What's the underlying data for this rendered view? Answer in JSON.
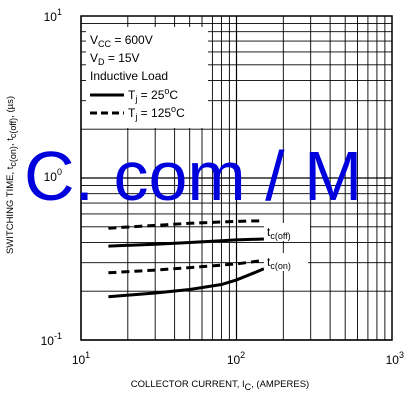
{
  "chart_data": {
    "type": "line",
    "x_scale": "log",
    "y_scale": "log",
    "xlim": [
      10,
      1000
    ],
    "ylim": [
      0.1,
      10
    ],
    "x_ticks": [
      {
        "value": 10,
        "base": "10",
        "exp": "1"
      },
      {
        "value": 100,
        "base": "10",
        "exp": "2"
      },
      {
        "value": 1000,
        "base": "10",
        "exp": "3"
      }
    ],
    "y_ticks": [
      {
        "value": 0.1,
        "base": "10",
        "exp": "-1"
      },
      {
        "value": 1,
        "base": "10",
        "exp": "0"
      },
      {
        "value": 10,
        "base": "10",
        "exp": "1"
      }
    ],
    "xlabel": {
      "main": "COLLECTOR CURRENT, I",
      "sub": "C",
      "tail": ", (AMPERES)"
    },
    "ylabel": {
      "main": "SWITCHING TIME, t",
      "sub1": "c(on)",
      "mid": ", t",
      "sub2": "c(off)",
      "tail": ", (µs)"
    },
    "conditions": [
      {
        "main": "V",
        "sub": "CC",
        "tail": " = 600V"
      },
      {
        "main": "V",
        "sub": "D",
        "tail": " = 15V"
      },
      {
        "main": "Inductive Load",
        "sub": "",
        "tail": ""
      }
    ],
    "legend": [
      {
        "style": "solid",
        "main": "T",
        "sub": "j",
        "tail": " = 25",
        "sup": "o",
        "unit": "C"
      },
      {
        "style": "dashed",
        "main": "T",
        "sub": "j",
        "tail": " = 125",
        "sup": "o",
        "unit": "C"
      }
    ],
    "series": [
      {
        "label": {
          "main": "t",
          "sub": "c(off)"
        },
        "temperature": "25",
        "style": "solid",
        "x": [
          15,
          30,
          50,
          80,
          100,
          150
        ],
        "y": [
          0.38,
          0.39,
          0.4,
          0.41,
          0.415,
          0.42
        ]
      },
      {
        "label": {
          "main": "t",
          "sub": "c(off)"
        },
        "temperature": "125",
        "style": "dashed",
        "x": [
          15,
          30,
          50,
          80,
          100,
          150
        ],
        "y": [
          0.49,
          0.51,
          0.525,
          0.535,
          0.54,
          0.545
        ]
      },
      {
        "label": {
          "main": "t",
          "sub": "c(on)"
        },
        "temperature": "25",
        "style": "solid",
        "x": [
          15,
          30,
          50,
          80,
          100,
          130,
          150
        ],
        "y": [
          0.185,
          0.195,
          0.205,
          0.22,
          0.235,
          0.26,
          0.275
        ]
      },
      {
        "label": {
          "main": "t",
          "sub": "c(on)"
        },
        "temperature": "125",
        "style": "dashed",
        "x": [
          15,
          30,
          50,
          80,
          100,
          150
        ],
        "y": [
          0.26,
          0.27,
          0.28,
          0.29,
          0.295,
          0.31
        ]
      }
    ],
    "annotations": [
      {
        "main": "t",
        "sub": "c(off)",
        "anchor_x": 150,
        "anchor_y": 0.5
      },
      {
        "main": "t",
        "sub": "c(on)",
        "anchor_x": 150,
        "anchor_y": 0.3
      }
    ],
    "watermark": "C. com / M"
  }
}
